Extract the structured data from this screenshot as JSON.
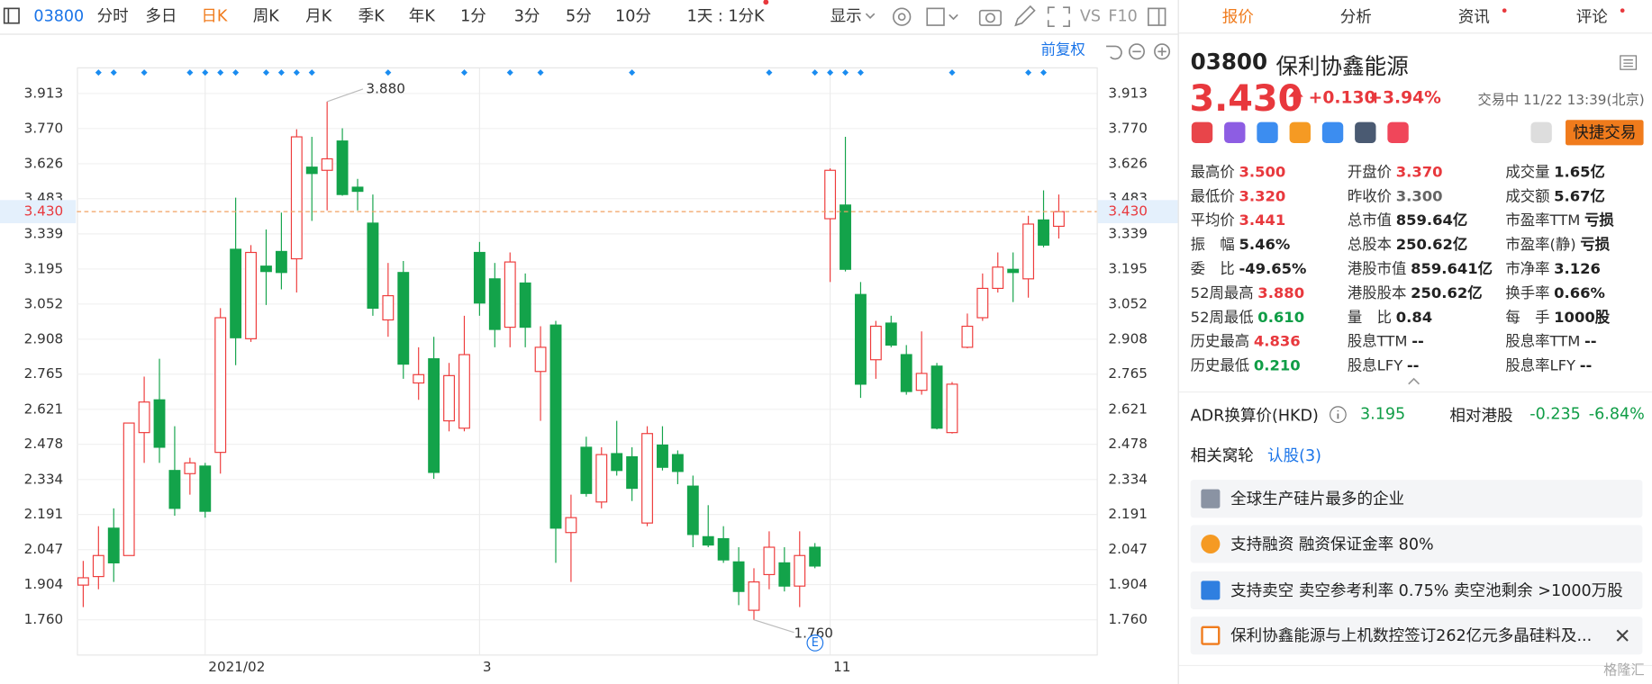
{
  "toolbar": {
    "code": "03800",
    "items": [
      "分时",
      "多日",
      "日K",
      "周K",
      "月K",
      "季K",
      "年K",
      "1分",
      "3分",
      "5分",
      "10分",
      "1天 : 1分K",
      "显示",
      "VS",
      "F10"
    ]
  },
  "adjust_label": "前复权",
  "chart_data": {
    "type": "candlestick",
    "categories": [
      null,
      null,
      null,
      null,
      null,
      null,
      null,
      null,
      "2021/02",
      null,
      null,
      null,
      null,
      null,
      null,
      null,
      null,
      null,
      null,
      null,
      null,
      null,
      null,
      null,
      null,
      null,
      "3",
      null,
      null,
      null,
      null,
      null,
      null,
      null,
      null,
      null,
      null,
      null,
      null,
      null,
      null,
      null,
      null,
      null,
      null,
      null,
      null,
      null,
      null,
      "11",
      null,
      null,
      null,
      null,
      null,
      null,
      null,
      null,
      null,
      null,
      null,
      null,
      null,
      null,
      null
    ],
    "open": [
      1.902,
      1.937,
      2.135,
      2.023,
      2.526,
      2.66,
      2.371,
      2.358,
      2.389,
      2.445,
      3.276,
      2.91,
      3.207,
      3.267,
      3.237,
      3.612,
      3.599,
      3.719,
      3.53,
      3.383,
      2.987,
      3.181,
      2.729,
      2.828,
      2.574,
      2.544,
      3.263,
      3.155,
      2.957,
      3.138,
      2.776,
      2.966,
      2.117,
      2.466,
      2.242,
      2.44,
      2.427,
      2.156,
      2.475,
      2.436,
      2.307,
      2.1,
      2.092,
      1.997,
      1.799,
      1.945,
      1.993,
      1.898,
      2.057,
      3.401,
      3.457,
      3.091,
      2.824,
      2.974,
      2.845,
      2.699,
      2.798,
      2.526,
      2.875,
      2.996,
      3.116,
      3.194,
      3.155,
      3.396,
      3.37
    ],
    "high": [
      2.001,
      2.143,
      2.216,
      2.565,
      2.755,
      2.828,
      2.552,
      2.423,
      2.402,
      3.035,
      3.487,
      3.293,
      3.357,
      3.426,
      3.767,
      3.736,
      3.88,
      3.771,
      3.564,
      3.5,
      3.22,
      3.228,
      2.875,
      2.918,
      2.811,
      3.004,
      3.306,
      3.22,
      3.263,
      3.177,
      2.961,
      2.983,
      2.272,
      2.509,
      2.466,
      2.574,
      2.466,
      2.552,
      2.552,
      2.453,
      2.35,
      2.229,
      2.143,
      2.057,
      1.971,
      2.122,
      2.057,
      2.122,
      2.074,
      3.607,
      3.736,
      3.142,
      2.983,
      3.004,
      2.884,
      2.94,
      2.811,
      2.733,
      3.013,
      3.177,
      3.263,
      3.263,
      3.413,
      3.517,
      3.5
    ],
    "low": [
      1.812,
      1.885,
      1.915,
      2.023,
      2.402,
      2.402,
      2.186,
      2.272,
      2.178,
      2.358,
      2.802,
      2.897,
      3.048,
      3.112,
      3.099,
      3.392,
      3.435,
      3.495,
      3.435,
      3.004,
      2.918,
      2.746,
      2.66,
      2.337,
      2.531,
      2.531,
      3.004,
      2.875,
      2.875,
      2.875,
      2.574,
      1.993,
      1.915,
      2.264,
      2.216,
      2.35,
      2.246,
      2.143,
      2.371,
      2.315,
      2.057,
      2.057,
      1.993,
      1.82,
      1.76,
      1.885,
      1.876,
      1.812,
      1.971,
      3.142,
      3.185,
      2.668,
      2.746,
      2.875,
      2.681,
      2.681,
      2.539,
      2.522,
      2.871,
      2.983,
      3.099,
      3.06,
      3.078,
      3.284,
      3.32
    ],
    "close": [
      1.932,
      2.023,
      1.993,
      2.565,
      2.651,
      2.466,
      2.216,
      2.402,
      2.204,
      2.996,
      2.914,
      3.263,
      3.185,
      3.181,
      3.736,
      3.586,
      3.646,
      3.5,
      3.513,
      3.035,
      3.086,
      2.806,
      2.763,
      2.363,
      2.759,
      2.845,
      3.056,
      2.948,
      3.224,
      2.957,
      2.875,
      2.135,
      2.178,
      2.277,
      2.436,
      2.371,
      2.298,
      2.522,
      2.384,
      2.367,
      2.109,
      2.066,
      2.005,
      1.876,
      1.915,
      2.057,
      1.898,
      2.023,
      1.98,
      3.599,
      3.194,
      2.724,
      2.961,
      2.884,
      2.694,
      2.768,
      2.544,
      2.724,
      2.961,
      3.116,
      3.203,
      3.181,
      3.379,
      3.293,
      3.43
    ],
    "up_color": "#ee3b3b",
    "down_color": "#13a34a",
    "ylim": [
      1.618,
      4.016
    ],
    "yticks": [
      3.913,
      {
        "value": 3.77,
        "label": "3.770"
      },
      3.626,
      3.483,
      3.339,
      3.195,
      3.052,
      2.908,
      2.765,
      2.621,
      2.478,
      2.334,
      2.191,
      2.047,
      1.904,
      {
        "value": 1.76,
        "label": "1.760"
      }
    ],
    "grid": true,
    "last_price": {
      "value": 3.43,
      "label": "3.430"
    },
    "high_label": {
      "value": 3.88,
      "label": "3.880"
    },
    "low_label": {
      "value": 1.76,
      "label": "1.760"
    },
    "event_label": "E"
  },
  "panel": {
    "tabs": [
      "报价",
      "分析",
      "资讯",
      "评论"
    ],
    "code": "03800",
    "name": "保利协鑫能源",
    "price": "3.430",
    "change": "+0.130",
    "change_pct": "+3.94%",
    "status": "交易中 11/22 13:39(北京)",
    "trade_button": "快捷交易",
    "stats": [
      [
        "最高价",
        "3.500"
      ],
      [
        "最低价",
        "3.320"
      ],
      [
        "平均价",
        "3.441"
      ],
      [
        "振　幅",
        "5.46%"
      ],
      [
        "委　比",
        "-49.65%"
      ],
      [
        "52周最高",
        "3.880"
      ],
      [
        "52周最低",
        "0.610"
      ],
      [
        "历史最高",
        "4.836"
      ],
      [
        "历史最低",
        "0.210"
      ],
      [
        "开盘价",
        "3.370"
      ],
      [
        "昨收价",
        "3.300"
      ],
      [
        "总市值",
        "859.64亿"
      ],
      [
        "总股本",
        "250.62亿"
      ],
      [
        "港股市值",
        "859.641亿"
      ],
      [
        "港股股本",
        "250.62亿"
      ],
      [
        "量　比",
        "0.84"
      ],
      [
        "股息TTM",
        "--"
      ],
      [
        "股息LFY",
        "--"
      ],
      [
        "成交量",
        "1.65亿"
      ],
      [
        "成交额",
        "5.67亿"
      ],
      [
        "市盈率TTM",
        "亏损"
      ],
      [
        "市盈率(静)",
        "亏损"
      ],
      [
        "市净率",
        "3.126"
      ],
      [
        "换手率",
        "0.66%"
      ],
      [
        "每　手",
        "1000股"
      ],
      [
        "股息率TTM",
        "--"
      ],
      [
        "股息率LFY",
        "--"
      ]
    ],
    "adr": {
      "label": "ADR换算价(HKD)",
      "value": "3.195",
      "relative_label": "相对港股",
      "diff": "-0.235",
      "diff_pct": "-6.84%"
    },
    "warrants": {
      "label": "相关窝轮",
      "link": "认股(3)"
    },
    "features": [
      "全球生产硅片最多的企业",
      "支持融资 融资保证金率 80%",
      "支持卖空 卖空参考利率 0.75% 卖空池剩余 >1000万股",
      "保利协鑫能源与上机数控签订262亿元多晶硅料及..."
    ],
    "watermark": "格隆汇"
  }
}
